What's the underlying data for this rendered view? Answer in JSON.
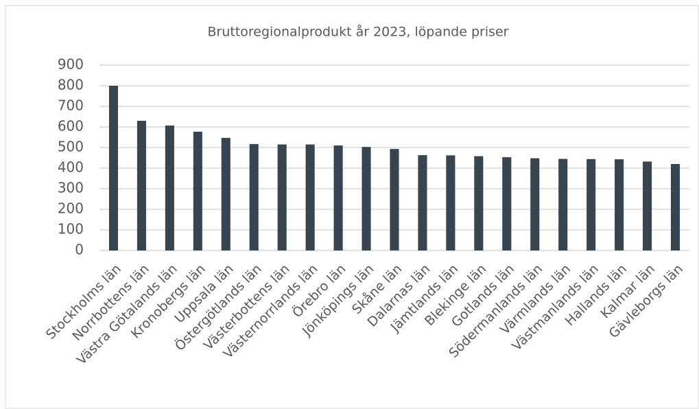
{
  "chart_data": {
    "type": "bar",
    "title": "Bruttoregionalprodukt år 2023, löpande priser",
    "categories": [
      "Stockholms län",
      "Norrbottens län",
      "Västra Götalands län",
      "Kronobergs län",
      "Uppsala län",
      "Östergötlands län",
      "Västerbottens län",
      "Västernorrlands län",
      "Örebro län",
      "Jönköpings län",
      "Skåne län",
      "Dalarnas län",
      "Jämtlands län",
      "Blekinge län",
      "Gotlands län",
      "Södermanlands län",
      "Värmlands län",
      "Västmanlands län",
      "Hallands län",
      "Kalmar län",
      "Gävleborgs län"
    ],
    "values": [
      800,
      630,
      607,
      577,
      547,
      517,
      515,
      515,
      510,
      503,
      493,
      463,
      462,
      458,
      453,
      448,
      445,
      444,
      443,
      432,
      420
    ],
    "color": "#36454f",
    "ylim": [
      0,
      900
    ],
    "yticks": [
      0,
      100,
      200,
      300,
      400,
      500,
      600,
      700,
      800,
      900
    ],
    "grid": true
  }
}
